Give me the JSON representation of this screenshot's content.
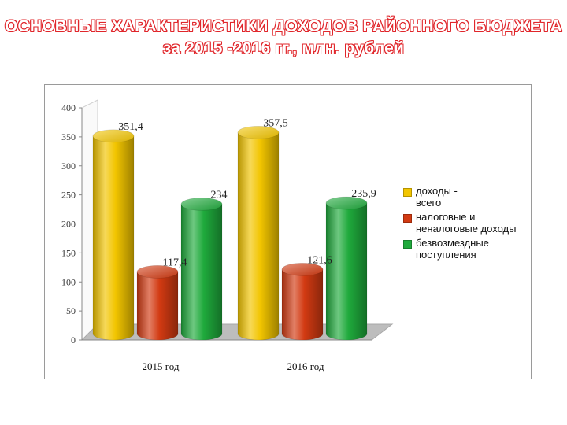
{
  "title_line1": "ОСНОВНЫЕ ХАРАКТЕРИСТИКИ ДОХОДОВ РАЙОННОГО БЮДЖЕТА",
  "title_line2": "за 2015 -2016 гг., млн. рублей",
  "chart_data": {
    "type": "bar",
    "categories": [
      "2015 год",
      "2016 год"
    ],
    "series": [
      {
        "name": "доходы - всего",
        "legend_lines": [
          "доходы -",
          "всего"
        ],
        "values": [
          351.4,
          357.5
        ],
        "labels": [
          "351,4",
          "357,5"
        ],
        "color": "#f2c500"
      },
      {
        "name": "налоговые и неналоговые доходы",
        "legend_lines": [
          "налоговые и",
          "неналоговые доходы"
        ],
        "values": [
          117.4,
          121.6
        ],
        "labels": [
          "117,4",
          "121,6"
        ],
        "color": "#d23a12"
      },
      {
        "name": "безвозмездные поступления",
        "legend_lines": [
          "безвозмездные",
          "поступления"
        ],
        "values": [
          234,
          235.9
        ],
        "labels": [
          "234",
          "235,9"
        ],
        "color": "#1faa3c"
      }
    ],
    "ylim": [
      0,
      400
    ],
    "yticks": [
      "0",
      "50",
      "100",
      "150",
      "200",
      "250",
      "300",
      "350",
      "400"
    ],
    "grid": false,
    "style": "3d-cylinder",
    "legend_position": "right"
  }
}
